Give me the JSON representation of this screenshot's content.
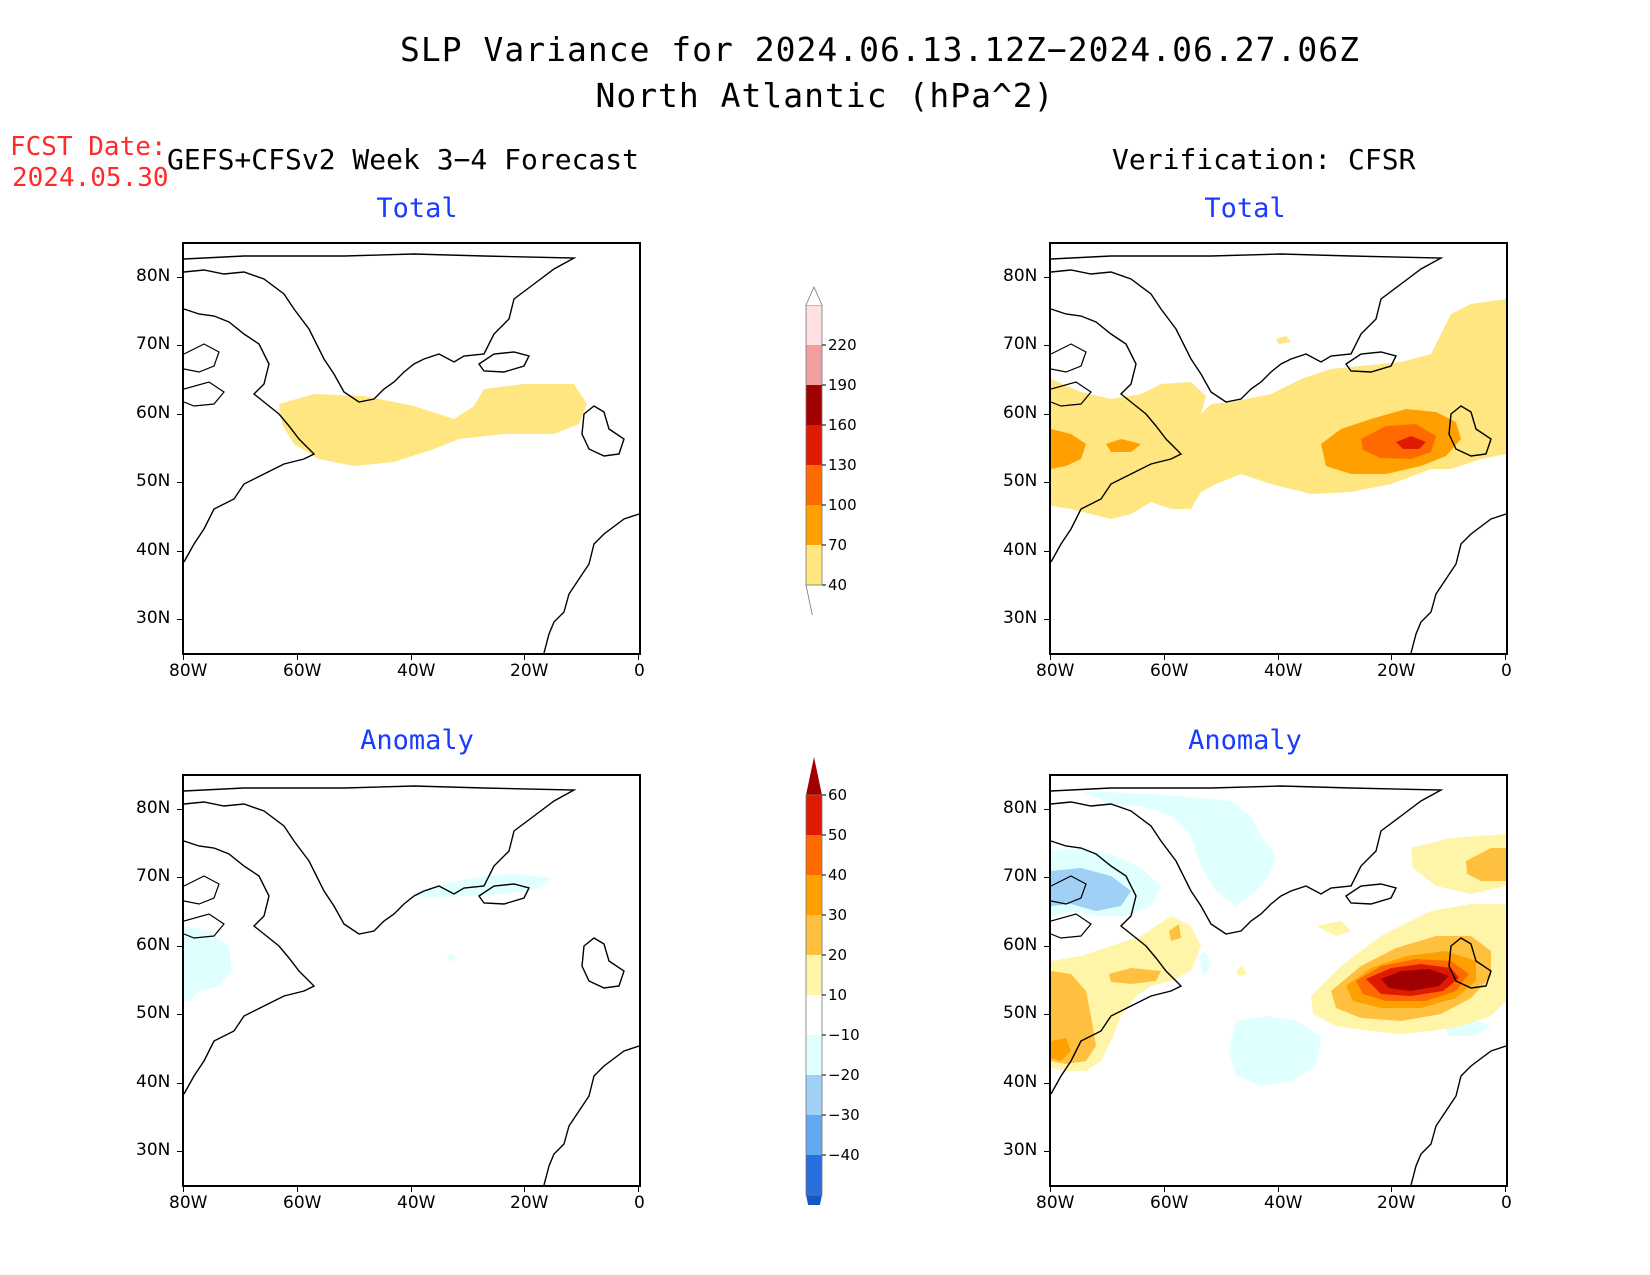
{
  "title": {
    "line1": "SLP Variance for 2024.06.13.12Z−2024.06.27.06Z",
    "line2": "North Atlantic (hPa^2)"
  },
  "fcst": {
    "label": "FCST Date:",
    "date": "2024.05.30"
  },
  "columns": {
    "left": "GEFS+CFSv2 Week 3−4 Forecast",
    "right": "Verification: CFSR"
  },
  "panels": {
    "total": "Total",
    "anomaly": "Anomaly"
  },
  "axes": {
    "lat_labels": [
      "80N",
      "70N",
      "60N",
      "50N",
      "40N",
      "30N"
    ],
    "lon_labels": [
      "80W",
      "60W",
      "40W",
      "20W",
      "0"
    ]
  },
  "colorbar_total": {
    "levels": [
      "40",
      "70",
      "100",
      "130",
      "160",
      "190",
      "220"
    ],
    "colors": [
      "#ffe680",
      "#ffa000",
      "#ff6a00",
      "#e01a00",
      "#a00000",
      "#f0a0a0",
      "#ffe0e0"
    ]
  },
  "colorbar_anom": {
    "levels": [
      "60",
      "50",
      "40",
      "30",
      "20",
      "10",
      "−10",
      "−20",
      "−30",
      "−40"
    ],
    "colors": [
      "#a00000",
      "#e01a00",
      "#ff6a00",
      "#ffa000",
      "#ffc040",
      "#fff5a8",
      "#ffffff",
      "#e0ffff",
      "#a0d0f5",
      "#60a8f0",
      "#2870e0",
      "#1458c8"
    ]
  }
}
